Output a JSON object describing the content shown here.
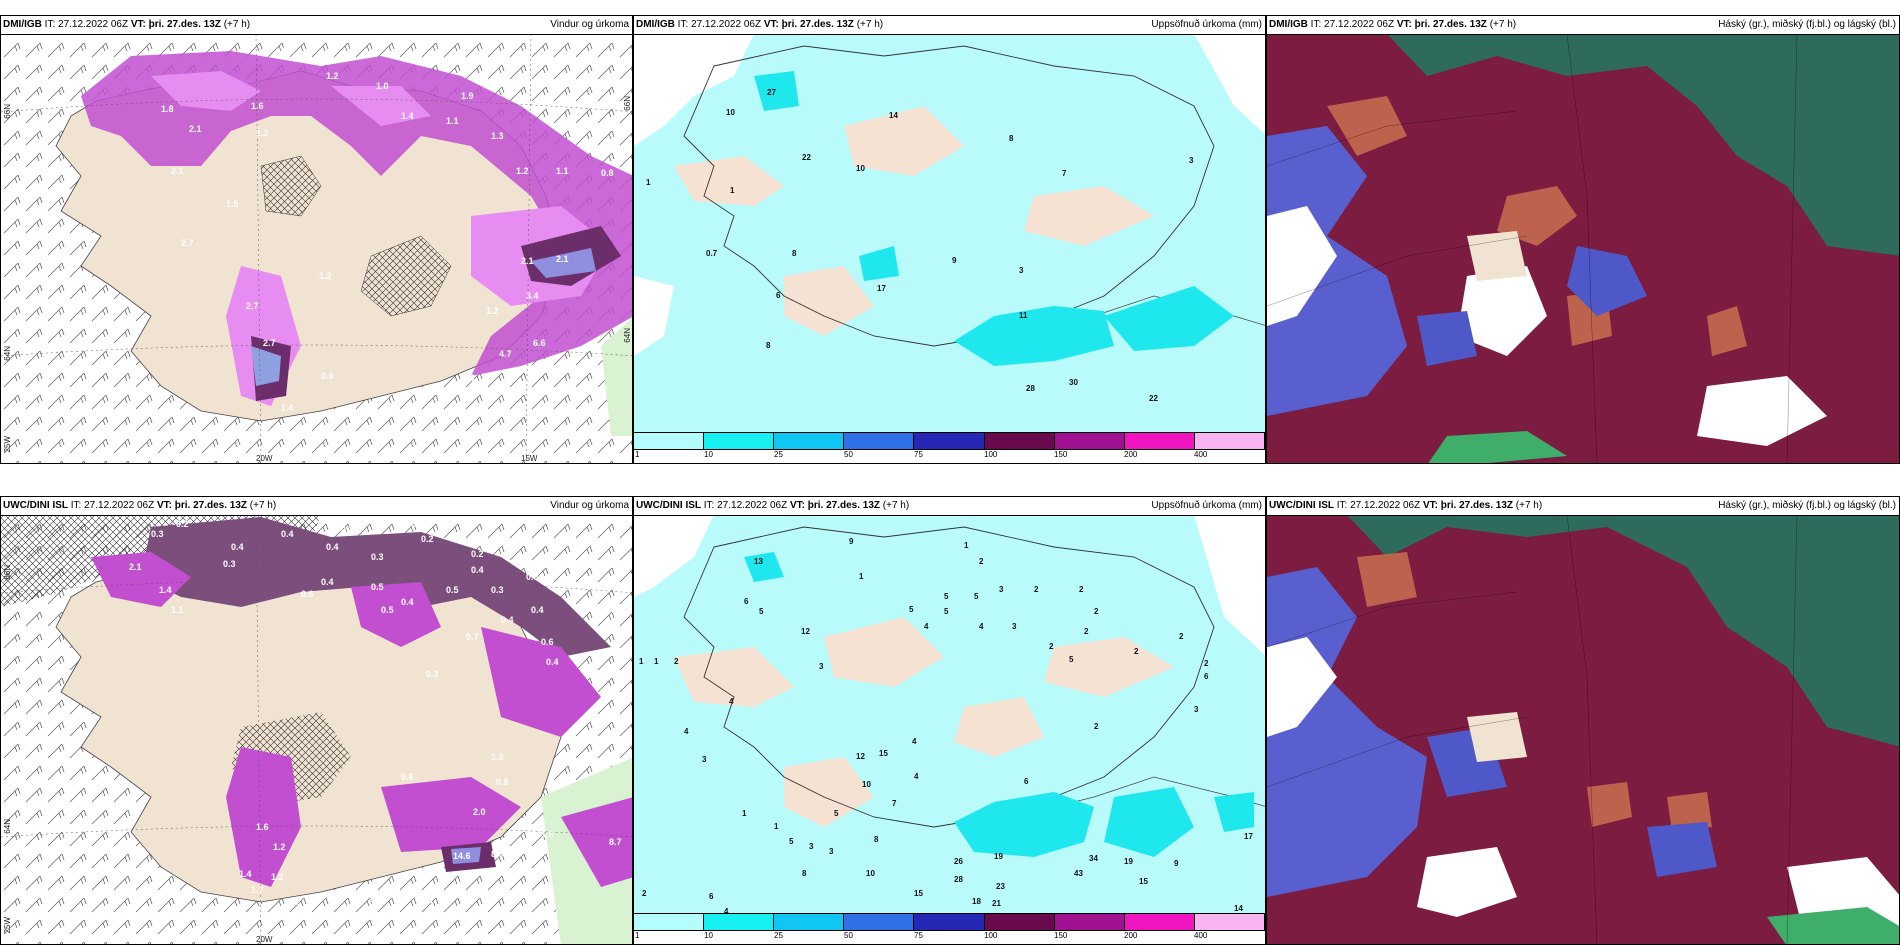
{
  "top": {
    "source": "DMI/IGB",
    "it": "IT: 27.12.2022 06Z",
    "vt": "VT: þri. 27.des. 13Z",
    "offset": "(+7 h)"
  },
  "bottom": {
    "source": "UWC/DINI ISL",
    "it": "IT: 27.12.2022 06Z",
    "vt": "VT: þri. 27.des. 13Z",
    "offset": "(+7 h)"
  },
  "panel_titles": {
    "wind": "Vindur og úrkoma",
    "precip": "Uppsöfnuð úrkoma (mm)",
    "cloud": "Háský (gr.), miðský (fj.bl.) og lágský (bl.)"
  },
  "axes": {
    "lat66": "66N",
    "lat64": "64N",
    "lon25": "25W",
    "lon20": "20W",
    "lon15": "15W"
  },
  "legend": {
    "ticks": [
      "1",
      "10",
      "25",
      "50",
      "75",
      "100",
      "150",
      "200",
      "400"
    ],
    "colors": [
      "#b3fdfd",
      "#16f0f0",
      "#10c6f2",
      "#2f70e6",
      "#2727b5",
      "#680a4d",
      "#a11292",
      "#f015c0",
      "#f7b4f0"
    ]
  },
  "colors": {
    "land": "#f1e3d1",
    "sea": "#ffffff",
    "rain_light": "#e78cf0",
    "rain_mid": "#c14fd0",
    "rain_dark": "#6b2e6b",
    "precip_light": "#b9fbfb",
    "precip_mid": "#1ee8ee",
    "cloud_high": "#2e6b5c",
    "cloud_mid": "#7b1c40",
    "cloud_low": "#5a5fd0"
  },
  "top_wind_labels": [
    "2.1",
    "1.8",
    "1.2",
    "1.0",
    "1.9",
    "1.6",
    "2.1",
    "1.2",
    "1.4",
    "1.1",
    "1.3",
    "2.1",
    "1.2",
    "1.1",
    "0.8",
    "1.5",
    "2.7",
    "2.1",
    "1.2",
    "2.1",
    "3.4",
    "1.2",
    "2.7",
    "6.6",
    "4.7",
    "2.7",
    "0.9",
    "3.1",
    "1.4",
    "2.0"
  ],
  "bottom_wind_labels": [
    "0.3",
    "0.2",
    "0.3",
    "0.4",
    "0.2",
    "0.4",
    "0.3",
    "0.2",
    "2.1",
    "0.4",
    "0.3",
    "0.2",
    "0.4",
    "0.5",
    "0.3",
    "1.4",
    "0.6",
    "0.4",
    "0.4",
    "0.5",
    "0.3",
    "0.4",
    "1.1",
    "0.4",
    "0.7",
    "0.6",
    "0.3",
    "0.4",
    "0.4",
    "0.5",
    "1.5",
    "1.6",
    "1.2",
    "2.0",
    "0.9",
    "0.6",
    "1.3",
    "1.2",
    "1.6",
    "14.6",
    "8.0",
    "1.7",
    "1.4",
    "1.2",
    "2.6",
    "2.5",
    "3.1",
    "1.1",
    "8.7"
  ],
  "top_precip_labels": [
    "27",
    "10",
    "14",
    "8",
    "22",
    "10",
    "7",
    "3",
    "1",
    "1",
    "9",
    "8",
    "0.7",
    "17",
    "6",
    "3",
    "11",
    "8",
    "28",
    "30",
    "22"
  ],
  "bottom_precip_labels": [
    "9",
    "1",
    "13",
    "2",
    "1",
    "5",
    "5",
    "2",
    "2",
    "3",
    "2",
    "6",
    "5",
    "5",
    "5",
    "4",
    "4",
    "3",
    "2",
    "12",
    "2",
    "2",
    "2",
    "5",
    "1",
    "1",
    "2",
    "3",
    "2",
    "6",
    "4",
    "4",
    "3",
    "12",
    "15",
    "4",
    "2",
    "3",
    "10",
    "4",
    "6",
    "5",
    "7",
    "1",
    "1",
    "5",
    "3",
    "3",
    "8",
    "8",
    "26",
    "19",
    "34",
    "43",
    "17",
    "19",
    "15",
    "9",
    "28",
    "23",
    "15",
    "21",
    "18",
    "14",
    "10",
    "4",
    "2",
    "6"
  ]
}
